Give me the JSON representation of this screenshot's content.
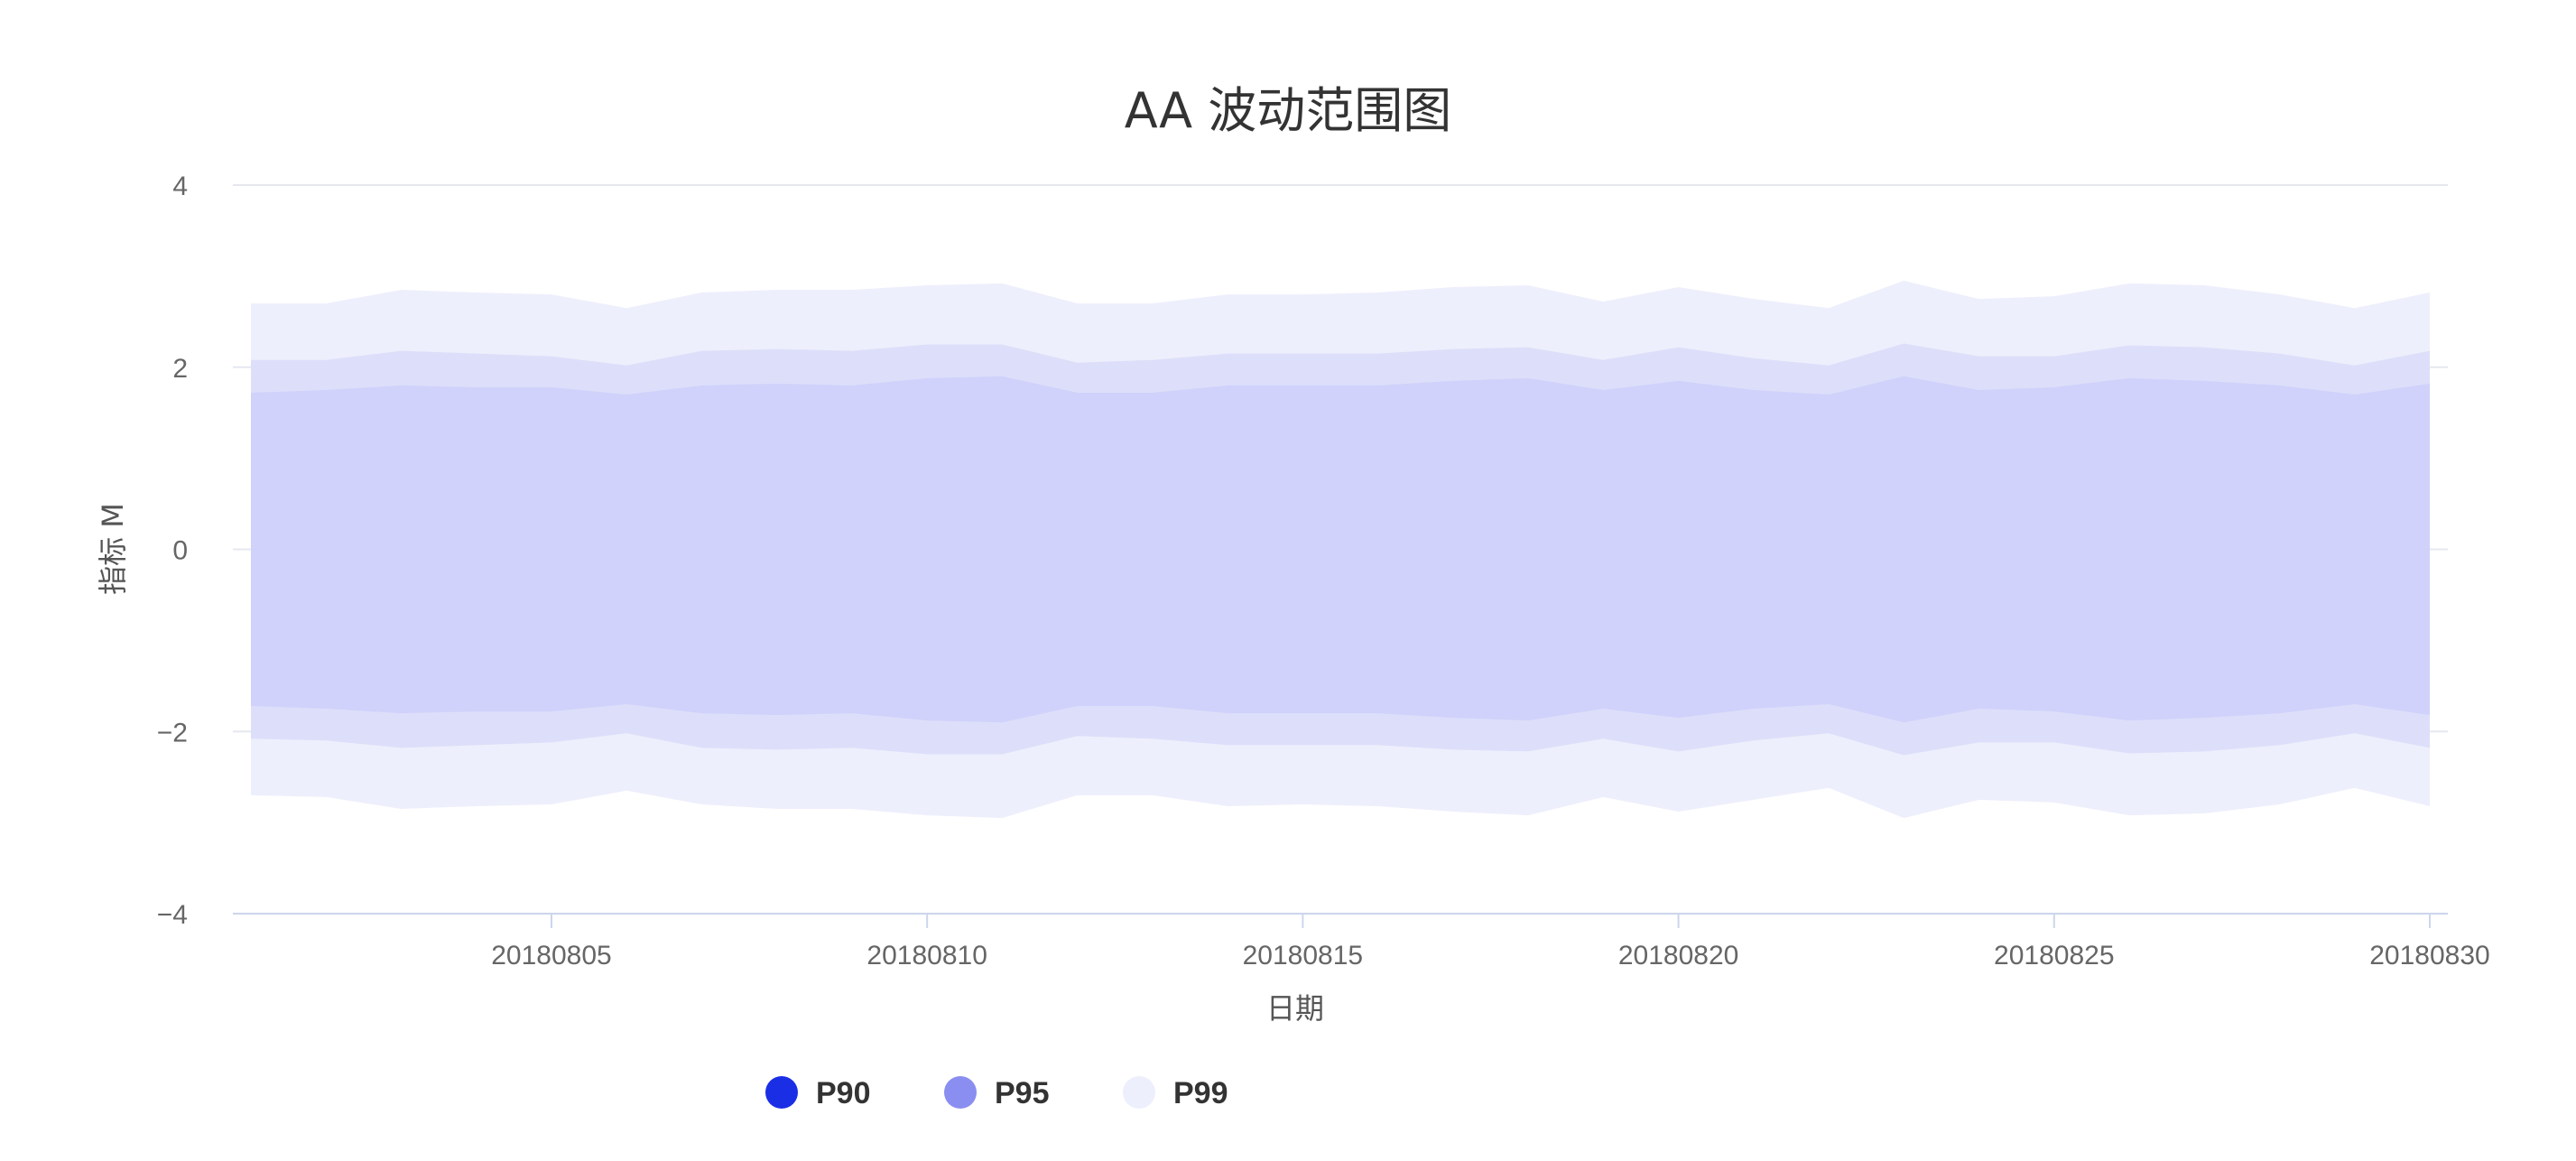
{
  "chart_data": {
    "type": "area",
    "title": "AA 波动范围图",
    "xlabel": "日期",
    "ylabel": "指标 M",
    "ylim": [
      -4,
      4
    ],
    "yticks": [
      -4,
      -2,
      0,
      2,
      4
    ],
    "ytick_labels": [
      "−4",
      "−2",
      "0",
      "2",
      "4"
    ],
    "x": [
      "20180801",
      "20180802",
      "20180803",
      "20180804",
      "20180805",
      "20180806",
      "20180807",
      "20180808",
      "20180809",
      "20180810",
      "20180811",
      "20180812",
      "20180813",
      "20180814",
      "20180815",
      "20180816",
      "20180817",
      "20180818",
      "20180819",
      "20180820",
      "20180821",
      "20180822",
      "20180823",
      "20180824",
      "20180825",
      "20180826",
      "20180827",
      "20180828",
      "20180829",
      "20180830"
    ],
    "xtick_labels": [
      "20180805",
      "20180810",
      "20180815",
      "20180820",
      "20180825",
      "20180830"
    ],
    "grid": true,
    "legend_position": "bottom",
    "series": [
      {
        "name": "P99",
        "color": "#eeeffc",
        "upper": [
          2.7,
          2.7,
          2.85,
          2.82,
          2.8,
          2.65,
          2.82,
          2.85,
          2.85,
          2.9,
          2.92,
          2.7,
          2.7,
          2.8,
          2.8,
          2.82,
          2.88,
          2.9,
          2.72,
          2.88,
          2.75,
          2.65,
          2.95,
          2.75,
          2.78,
          2.92,
          2.9,
          2.8,
          2.65,
          2.82
        ],
        "lower": [
          -2.7,
          -2.72,
          -2.85,
          -2.82,
          -2.8,
          -2.65,
          -2.8,
          -2.85,
          -2.85,
          -2.92,
          -2.95,
          -2.7,
          -2.7,
          -2.82,
          -2.8,
          -2.82,
          -2.88,
          -2.92,
          -2.72,
          -2.88,
          -2.75,
          -2.62,
          -2.95,
          -2.75,
          -2.78,
          -2.92,
          -2.9,
          -2.8,
          -2.62,
          -2.82
        ]
      },
      {
        "name": "P95",
        "color": "#dddffa",
        "upper": [
          2.08,
          2.08,
          2.18,
          2.15,
          2.12,
          2.02,
          2.18,
          2.2,
          2.18,
          2.25,
          2.25,
          2.05,
          2.08,
          2.15,
          2.15,
          2.15,
          2.2,
          2.22,
          2.08,
          2.22,
          2.1,
          2.02,
          2.26,
          2.12,
          2.12,
          2.24,
          2.22,
          2.15,
          2.02,
          2.18
        ],
        "lower": [
          -2.08,
          -2.1,
          -2.18,
          -2.15,
          -2.12,
          -2.02,
          -2.18,
          -2.2,
          -2.18,
          -2.25,
          -2.25,
          -2.05,
          -2.08,
          -2.15,
          -2.15,
          -2.15,
          -2.2,
          -2.22,
          -2.08,
          -2.22,
          -2.1,
          -2.02,
          -2.26,
          -2.12,
          -2.12,
          -2.24,
          -2.22,
          -2.15,
          -2.02,
          -2.18
        ]
      },
      {
        "name": "P90",
        "color": "#d0d2fb",
        "upper": [
          1.72,
          1.75,
          1.8,
          1.78,
          1.78,
          1.7,
          1.8,
          1.82,
          1.8,
          1.88,
          1.9,
          1.72,
          1.72,
          1.8,
          1.8,
          1.8,
          1.85,
          1.88,
          1.75,
          1.85,
          1.75,
          1.7,
          1.9,
          1.75,
          1.78,
          1.88,
          1.85,
          1.8,
          1.7,
          1.82
        ],
        "lower": [
          -1.72,
          -1.75,
          -1.8,
          -1.78,
          -1.78,
          -1.7,
          -1.8,
          -1.82,
          -1.8,
          -1.88,
          -1.9,
          -1.72,
          -1.72,
          -1.8,
          -1.8,
          -1.8,
          -1.85,
          -1.88,
          -1.75,
          -1.85,
          -1.75,
          -1.7,
          -1.9,
          -1.75,
          -1.78,
          -1.88,
          -1.85,
          -1.8,
          -1.7,
          -1.82
        ]
      }
    ]
  },
  "legend": [
    {
      "label": "P90",
      "color": "#1a2ee6"
    },
    {
      "label": "P95",
      "color": "#8a8ef0"
    },
    {
      "label": "P99",
      "color": "#eeeffc"
    }
  ]
}
